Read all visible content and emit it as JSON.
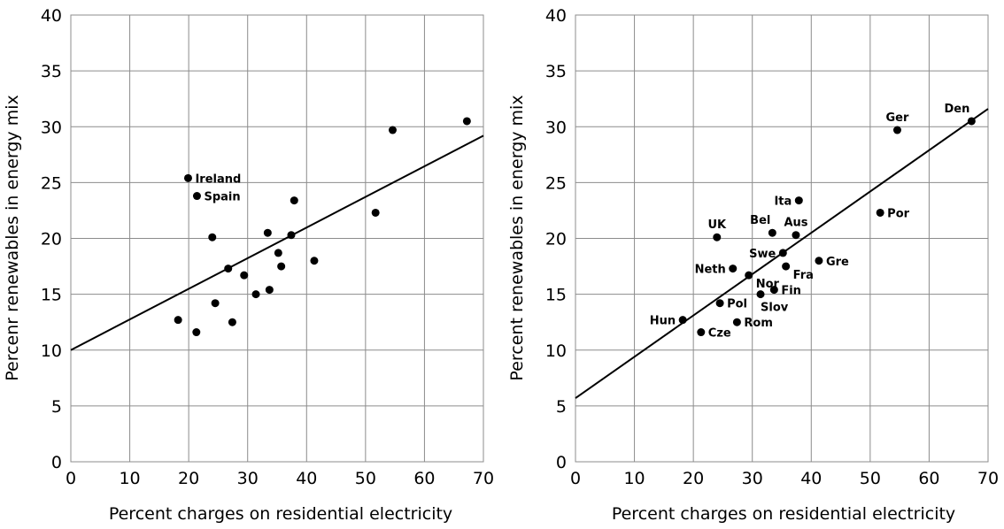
{
  "chart_data": [
    {
      "type": "scatter",
      "xlabel": "Percent charges on residential electricity",
      "ylabel": "Percenr renewables in energy mix",
      "xlim": [
        0,
        70
      ],
      "ylim": [
        0,
        40
      ],
      "xticks": [
        0,
        10,
        20,
        30,
        40,
        50,
        60,
        70
      ],
      "yticks": [
        0,
        5,
        10,
        15,
        20,
        25,
        30,
        35,
        40
      ],
      "grid": true,
      "trendline": {
        "x": [
          0,
          70
        ],
        "y": [
          10.0,
          29.2
        ]
      },
      "points": [
        {
          "x": 18.2,
          "y": 12.7,
          "label": ""
        },
        {
          "x": 19.9,
          "y": 25.4,
          "label": "Ireland"
        },
        {
          "x": 21.4,
          "y": 23.8,
          "label": "Spain"
        },
        {
          "x": 21.3,
          "y": 11.6,
          "label": ""
        },
        {
          "x": 24.0,
          "y": 20.1,
          "label": ""
        },
        {
          "x": 24.5,
          "y": 14.2,
          "label": ""
        },
        {
          "x": 26.7,
          "y": 17.3,
          "label": ""
        },
        {
          "x": 27.4,
          "y": 12.5,
          "label": ""
        },
        {
          "x": 29.4,
          "y": 16.7,
          "label": ""
        },
        {
          "x": 31.4,
          "y": 15.0,
          "label": ""
        },
        {
          "x": 33.4,
          "y": 20.5,
          "label": ""
        },
        {
          "x": 33.7,
          "y": 15.4,
          "label": ""
        },
        {
          "x": 35.2,
          "y": 18.7,
          "label": ""
        },
        {
          "x": 35.7,
          "y": 17.5,
          "label": ""
        },
        {
          "x": 37.4,
          "y": 20.3,
          "label": ""
        },
        {
          "x": 37.9,
          "y": 23.4,
          "label": ""
        },
        {
          "x": 41.3,
          "y": 18.0,
          "label": ""
        },
        {
          "x": 51.7,
          "y": 22.3,
          "label": ""
        },
        {
          "x": 54.6,
          "y": 29.7,
          "label": ""
        },
        {
          "x": 67.2,
          "y": 30.5,
          "label": ""
        }
      ]
    },
    {
      "type": "scatter",
      "xlabel": "Percent charges on residential electricity",
      "ylabel": "Percent renewables in energy mix",
      "xlim": [
        0,
        70
      ],
      "ylim": [
        0,
        40
      ],
      "xticks": [
        0,
        10,
        20,
        30,
        40,
        50,
        60,
        70
      ],
      "yticks": [
        0,
        5,
        10,
        15,
        20,
        25,
        30,
        35,
        40
      ],
      "grid": true,
      "trendline": {
        "x": [
          0,
          70
        ],
        "y": [
          5.7,
          31.6
        ]
      },
      "points": [
        {
          "x": 18.2,
          "y": 12.7,
          "label": "Hun",
          "pos": "left"
        },
        {
          "x": 21.3,
          "y": 11.6,
          "label": "Cze",
          "pos": "right"
        },
        {
          "x": 24.0,
          "y": 20.1,
          "label": "UK",
          "pos": "above"
        },
        {
          "x": 24.5,
          "y": 14.2,
          "label": "Pol",
          "pos": "right"
        },
        {
          "x": 26.7,
          "y": 17.3,
          "label": "Neth",
          "pos": "left"
        },
        {
          "x": 27.4,
          "y": 12.5,
          "label": "Rom",
          "pos": "right"
        },
        {
          "x": 29.4,
          "y": 16.7,
          "label": "Nor",
          "pos": "right-below"
        },
        {
          "x": 31.4,
          "y": 15.0,
          "label": "Slov",
          "pos": "below"
        },
        {
          "x": 33.4,
          "y": 20.5,
          "label": "Bel",
          "pos": "above-left"
        },
        {
          "x": 33.7,
          "y": 15.4,
          "label": "Fin",
          "pos": "right"
        },
        {
          "x": 35.2,
          "y": 18.7,
          "label": "Swe",
          "pos": "left"
        },
        {
          "x": 35.7,
          "y": 17.5,
          "label": "Fra",
          "pos": "right-below"
        },
        {
          "x": 37.4,
          "y": 20.3,
          "label": "Aus",
          "pos": "above"
        },
        {
          "x": 37.9,
          "y": 23.4,
          "label": "Ita",
          "pos": "left"
        },
        {
          "x": 41.3,
          "y": 18.0,
          "label": "Gre",
          "pos": "right"
        },
        {
          "x": 51.7,
          "y": 22.3,
          "label": "Por",
          "pos": "right"
        },
        {
          "x": 54.6,
          "y": 29.7,
          "label": "Ger",
          "pos": "above"
        },
        {
          "x": 67.2,
          "y": 30.5,
          "label": "Den",
          "pos": "above-left"
        }
      ]
    }
  ]
}
